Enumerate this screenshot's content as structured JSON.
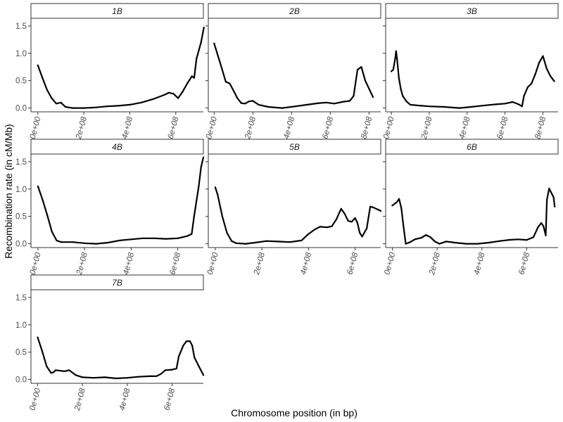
{
  "chart_data": {
    "type": "line",
    "facet_by": "chromosome",
    "xlabel": "Chromosome position (in bp)",
    "ylabel": "Recombination rate (in cM/Mb)",
    "ylim": [
      -0.07,
      1.64
    ],
    "y_ticks": [
      0.0,
      0.5,
      1.0,
      1.5
    ],
    "y_tick_labels": [
      "0.0",
      "0.5",
      "1.0",
      "1.5"
    ],
    "x_ticks": [
      0,
      200000000,
      400000000,
      600000000,
      800000000
    ],
    "x_tick_labels": [
      "0e+00",
      "2e+08",
      "4e+08",
      "6e+08",
      "8e+08"
    ],
    "grid": false,
    "legend": "none",
    "line_color": "#000000",
    "panels": [
      {
        "name": "1B",
        "xlim": [
          -30000000,
          720000000
        ],
        "x_ticks": [
          0,
          200000000,
          400000000,
          600000000
        ],
        "points": [
          [
            0,
            0.78
          ],
          [
            20000000,
            0.55
          ],
          [
            40000000,
            0.33
          ],
          [
            60000000,
            0.18
          ],
          [
            80000000,
            0.08
          ],
          [
            100000000,
            0.1
          ],
          [
            120000000,
            0.02
          ],
          [
            150000000,
            0.0
          ],
          [
            200000000,
            0.0
          ],
          [
            250000000,
            0.01
          ],
          [
            300000000,
            0.03
          ],
          [
            350000000,
            0.04
          ],
          [
            400000000,
            0.06
          ],
          [
            450000000,
            0.1
          ],
          [
            500000000,
            0.16
          ],
          [
            550000000,
            0.24
          ],
          [
            570000000,
            0.28
          ],
          [
            590000000,
            0.26
          ],
          [
            610000000,
            0.18
          ],
          [
            630000000,
            0.3
          ],
          [
            650000000,
            0.45
          ],
          [
            670000000,
            0.58
          ],
          [
            680000000,
            0.55
          ],
          [
            690000000,
            0.9
          ],
          [
            710000000,
            1.2
          ],
          [
            722000000,
            1.47
          ]
        ]
      },
      {
        "name": "2B",
        "xlim": [
          -30000000,
          860000000
        ],
        "x_ticks": [
          0,
          200000000,
          400000000,
          600000000,
          800000000
        ],
        "points": [
          [
            0,
            1.18
          ],
          [
            20000000,
            0.95
          ],
          [
            40000000,
            0.72
          ],
          [
            60000000,
            0.48
          ],
          [
            80000000,
            0.45
          ],
          [
            100000000,
            0.32
          ],
          [
            120000000,
            0.18
          ],
          [
            140000000,
            0.09
          ],
          [
            160000000,
            0.08
          ],
          [
            180000000,
            0.12
          ],
          [
            200000000,
            0.13
          ],
          [
            230000000,
            0.06
          ],
          [
            280000000,
            0.02
          ],
          [
            350000000,
            0.0
          ],
          [
            420000000,
            0.03
          ],
          [
            480000000,
            0.06
          ],
          [
            540000000,
            0.09
          ],
          [
            580000000,
            0.1
          ],
          [
            620000000,
            0.08
          ],
          [
            660000000,
            0.11
          ],
          [
            700000000,
            0.13
          ],
          [
            720000000,
            0.22
          ],
          [
            740000000,
            0.7
          ],
          [
            760000000,
            0.75
          ],
          [
            780000000,
            0.5
          ],
          [
            800000000,
            0.35
          ],
          [
            820000000,
            0.2
          ]
        ]
      },
      {
        "name": "3B",
        "xlim": [
          -30000000,
          880000000
        ],
        "x_ticks": [
          0,
          200000000,
          400000000,
          600000000,
          800000000
        ],
        "points": [
          [
            0,
            0.67
          ],
          [
            10000000,
            0.7
          ],
          [
            20000000,
            0.9
          ],
          [
            25000000,
            1.04
          ],
          [
            30000000,
            0.9
          ],
          [
            40000000,
            0.55
          ],
          [
            50000000,
            0.35
          ],
          [
            60000000,
            0.22
          ],
          [
            80000000,
            0.12
          ],
          [
            100000000,
            0.06
          ],
          [
            130000000,
            0.05
          ],
          [
            160000000,
            0.04
          ],
          [
            200000000,
            0.03
          ],
          [
            280000000,
            0.02
          ],
          [
            360000000,
            0.0
          ],
          [
            420000000,
            0.02
          ],
          [
            500000000,
            0.05
          ],
          [
            560000000,
            0.07
          ],
          [
            600000000,
            0.08
          ],
          [
            640000000,
            0.11
          ],
          [
            670000000,
            0.07
          ],
          [
            690000000,
            0.03
          ],
          [
            700000000,
            0.22
          ],
          [
            720000000,
            0.38
          ],
          [
            740000000,
            0.45
          ],
          [
            760000000,
            0.62
          ],
          [
            780000000,
            0.83
          ],
          [
            800000000,
            0.95
          ],
          [
            820000000,
            0.72
          ],
          [
            840000000,
            0.58
          ],
          [
            860000000,
            0.49
          ]
        ]
      },
      {
        "name": "4B",
        "xlim": [
          -30000000,
          710000000
        ],
        "x_ticks": [
          0,
          200000000,
          400000000,
          600000000
        ],
        "points": [
          [
            0,
            1.05
          ],
          [
            20000000,
            0.8
          ],
          [
            40000000,
            0.52
          ],
          [
            60000000,
            0.22
          ],
          [
            80000000,
            0.06
          ],
          [
            100000000,
            0.03
          ],
          [
            150000000,
            0.03
          ],
          [
            200000000,
            0.01
          ],
          [
            250000000,
            0.0
          ],
          [
            300000000,
            0.02
          ],
          [
            350000000,
            0.06
          ],
          [
            400000000,
            0.08
          ],
          [
            450000000,
            0.1
          ],
          [
            500000000,
            0.1
          ],
          [
            550000000,
            0.09
          ],
          [
            600000000,
            0.1
          ],
          [
            640000000,
            0.14
          ],
          [
            660000000,
            0.18
          ],
          [
            670000000,
            0.5
          ],
          [
            690000000,
            1.05
          ],
          [
            700000000,
            1.4
          ],
          [
            710000000,
            1.58
          ]
        ]
      },
      {
        "name": "5B",
        "xlim": [
          -30000000,
          710000000
        ],
        "x_ticks": [
          0,
          200000000,
          400000000,
          600000000
        ],
        "points": [
          [
            0,
            1.03
          ],
          [
            10000000,
            0.9
          ],
          [
            30000000,
            0.5
          ],
          [
            50000000,
            0.2
          ],
          [
            70000000,
            0.05
          ],
          [
            90000000,
            0.01
          ],
          [
            130000000,
            0.0
          ],
          [
            170000000,
            0.02
          ],
          [
            220000000,
            0.05
          ],
          [
            270000000,
            0.04
          ],
          [
            320000000,
            0.03
          ],
          [
            370000000,
            0.06
          ],
          [
            400000000,
            0.18
          ],
          [
            430000000,
            0.27
          ],
          [
            450000000,
            0.31
          ],
          [
            480000000,
            0.3
          ],
          [
            500000000,
            0.32
          ],
          [
            520000000,
            0.45
          ],
          [
            540000000,
            0.64
          ],
          [
            555000000,
            0.55
          ],
          [
            570000000,
            0.42
          ],
          [
            585000000,
            0.4
          ],
          [
            600000000,
            0.47
          ],
          [
            610000000,
            0.38
          ],
          [
            620000000,
            0.2
          ],
          [
            630000000,
            0.13
          ],
          [
            650000000,
            0.28
          ],
          [
            665000000,
            0.68
          ],
          [
            680000000,
            0.66
          ],
          [
            700000000,
            0.62
          ],
          [
            710000000,
            0.6
          ]
        ]
      },
      {
        "name": "6B",
        "xlim": [
          -30000000,
          740000000
        ],
        "x_ticks": [
          0,
          200000000,
          400000000,
          600000000
        ],
        "points": [
          [
            0,
            0.7
          ],
          [
            20000000,
            0.76
          ],
          [
            30000000,
            0.82
          ],
          [
            40000000,
            0.65
          ],
          [
            50000000,
            0.3
          ],
          [
            60000000,
            0.0
          ],
          [
            80000000,
            0.03
          ],
          [
            100000000,
            0.08
          ],
          [
            130000000,
            0.11
          ],
          [
            150000000,
            0.16
          ],
          [
            170000000,
            0.12
          ],
          [
            190000000,
            0.04
          ],
          [
            210000000,
            0.0
          ],
          [
            240000000,
            0.04
          ],
          [
            280000000,
            0.02
          ],
          [
            330000000,
            0.0
          ],
          [
            380000000,
            0.0
          ],
          [
            430000000,
            0.02
          ],
          [
            480000000,
            0.05
          ],
          [
            520000000,
            0.07
          ],
          [
            560000000,
            0.08
          ],
          [
            600000000,
            0.07
          ],
          [
            630000000,
            0.12
          ],
          [
            650000000,
            0.3
          ],
          [
            665000000,
            0.38
          ],
          [
            675000000,
            0.32
          ],
          [
            685000000,
            0.15
          ],
          [
            690000000,
            0.8
          ],
          [
            700000000,
            1.01
          ],
          [
            710000000,
            0.93
          ],
          [
            720000000,
            0.85
          ],
          [
            725000000,
            0.68
          ]
        ]
      },
      {
        "name": "7B",
        "xlim": [
          -30000000,
          740000000
        ],
        "x_ticks": [
          0,
          200000000,
          400000000,
          600000000
        ],
        "points": [
          [
            0,
            0.77
          ],
          [
            20000000,
            0.52
          ],
          [
            40000000,
            0.24
          ],
          [
            60000000,
            0.12
          ],
          [
            70000000,
            0.13
          ],
          [
            80000000,
            0.17
          ],
          [
            120000000,
            0.15
          ],
          [
            140000000,
            0.17
          ],
          [
            170000000,
            0.08
          ],
          [
            200000000,
            0.04
          ],
          [
            250000000,
            0.03
          ],
          [
            300000000,
            0.04
          ],
          [
            350000000,
            0.02
          ],
          [
            400000000,
            0.03
          ],
          [
            450000000,
            0.05
          ],
          [
            500000000,
            0.06
          ],
          [
            530000000,
            0.06
          ],
          [
            550000000,
            0.1
          ],
          [
            570000000,
            0.17
          ],
          [
            600000000,
            0.18
          ],
          [
            620000000,
            0.2
          ],
          [
            630000000,
            0.42
          ],
          [
            650000000,
            0.62
          ],
          [
            665000000,
            0.7
          ],
          [
            680000000,
            0.7
          ],
          [
            690000000,
            0.62
          ],
          [
            700000000,
            0.4
          ],
          [
            720000000,
            0.24
          ],
          [
            740000000,
            0.08
          ]
        ]
      }
    ]
  }
}
